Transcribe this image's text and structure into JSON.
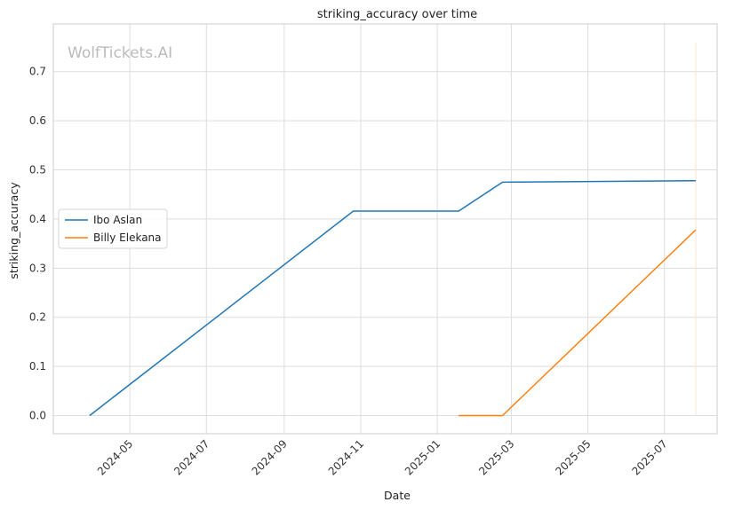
{
  "chart_data": {
    "type": "line",
    "title": "striking_accuracy over time",
    "xlabel": "Date",
    "ylabel": "striking_accuracy",
    "watermark": "WolfTickets.AI",
    "grid": true,
    "legend_position": "center-left",
    "xlim": [
      "2024-03-01",
      "2025-08-12"
    ],
    "ylim": [
      -0.037,
      0.797
    ],
    "x_ticks": [
      "2024-05",
      "2024-07",
      "2024-09",
      "2024-11",
      "2025-01",
      "2025-03",
      "2025-05",
      "2025-07"
    ],
    "y_ticks": [
      0.0,
      0.1,
      0.2,
      0.3,
      0.4,
      0.5,
      0.6,
      0.7
    ],
    "series": [
      {
        "name": "Ibo Aslan",
        "color": "#1f77b4",
        "points": [
          {
            "x": "2024-03-30",
            "y": 0.0
          },
          {
            "x": "2024-10-26",
            "y": 0.416
          },
          {
            "x": "2025-01-18",
            "y": 0.416
          },
          {
            "x": "2025-02-22",
            "y": 0.475
          },
          {
            "x": "2025-07-26",
            "y": 0.478
          }
        ]
      },
      {
        "name": "Billy Elekana",
        "color": "#ff7f0e",
        "points": [
          {
            "x": "2025-01-18",
            "y": 0.0
          },
          {
            "x": "2025-02-22",
            "y": 0.0
          },
          {
            "x": "2025-07-26",
            "y": 0.378
          }
        ]
      }
    ],
    "marker_line": {
      "x": "2025-07-26",
      "y_range": [
        0.0,
        0.76
      ],
      "color": "#fbe3cf"
    }
  }
}
